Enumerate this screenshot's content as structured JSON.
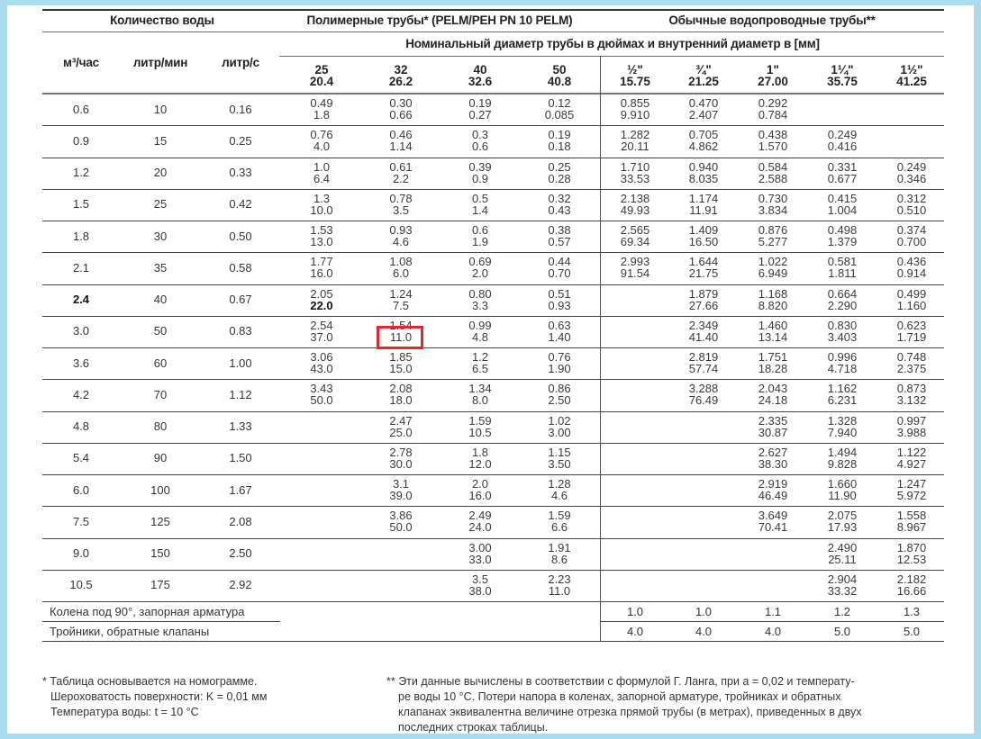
{
  "header": {
    "quantity": "Количество воды",
    "polymer": "Полимерные трубы* (PELM/PEH PN 10 PELM)",
    "steel": "Обычные водопроводные трубы**",
    "nominal": "Номинальный диаметр трубы в дюймах и внутренний диаметр в [мм]",
    "units": [
      "м³/час",
      "литр/мин",
      "литр/с"
    ],
    "diameters": [
      {
        "nom": "25",
        "inner": "20.4"
      },
      {
        "nom": "32",
        "inner": "26.2"
      },
      {
        "nom": "40",
        "inner": "32.6"
      },
      {
        "nom": "50",
        "inner": "40.8"
      },
      {
        "nom": "½\"",
        "inner": "15.75"
      },
      {
        "nom": "¾\"",
        "inner": "21.25"
      },
      {
        "nom": "1\"",
        "inner": "27.00"
      },
      {
        "nom": "1¼\"",
        "inner": "35.75"
      },
      {
        "nom": "1½\"",
        "inner": "41.25"
      }
    ]
  },
  "rows": [
    {
      "m3": "0.6",
      "lmin": "10",
      "ls": "0.16",
      "cells": [
        [
          "0.49",
          "1.8"
        ],
        [
          "0.30",
          "0.66"
        ],
        [
          "0.19",
          "0.27"
        ],
        [
          "0.12",
          "0.085"
        ],
        [
          "0.855",
          "9.910"
        ],
        [
          "0.470",
          "2.407"
        ],
        [
          "0.292",
          "0.784"
        ],
        null,
        null
      ]
    },
    {
      "m3": "0.9",
      "lmin": "15",
      "ls": "0.25",
      "cells": [
        [
          "0.76",
          "4.0"
        ],
        [
          "0.46",
          "1.14"
        ],
        [
          "0.3",
          "0.6"
        ],
        [
          "0.19",
          "0.18"
        ],
        [
          "1.282",
          "20.11"
        ],
        [
          "0.705",
          "4.862"
        ],
        [
          "0.438",
          "1.570"
        ],
        [
          "0.249",
          "0.416"
        ],
        null
      ]
    },
    {
      "m3": "1.2",
      "lmin": "20",
      "ls": "0.33",
      "cells": [
        [
          "1.0",
          "6.4"
        ],
        [
          "0.61",
          "2.2"
        ],
        [
          "0.39",
          "0.9"
        ],
        [
          "0.25",
          "0.28"
        ],
        [
          "1.710",
          "33.53"
        ],
        [
          "0.940",
          "8.035"
        ],
        [
          "0.584",
          "2.588"
        ],
        [
          "0.331",
          "0.677"
        ],
        [
          "0.249",
          "0.346"
        ]
      ]
    },
    {
      "m3": "1.5",
      "lmin": "25",
      "ls": "0.42",
      "cells": [
        [
          "1.3",
          "10.0"
        ],
        [
          "0.78",
          "3.5"
        ],
        [
          "0.5",
          "1.4"
        ],
        [
          "0.32",
          "0.43"
        ],
        [
          "2.138",
          "49.93"
        ],
        [
          "1.174",
          "11.91"
        ],
        [
          "0.730",
          "3.834"
        ],
        [
          "0.415",
          "1.004"
        ],
        [
          "0.312",
          "0.510"
        ]
      ]
    },
    {
      "m3": "1.8",
      "lmin": "30",
      "ls": "0.50",
      "cells": [
        [
          "1.53",
          "13.0"
        ],
        [
          "0.93",
          "4.6"
        ],
        [
          "0.6",
          "1.9"
        ],
        [
          "0.38",
          "0.57"
        ],
        [
          "2.565",
          "69.34"
        ],
        [
          "1.409",
          "16.50"
        ],
        [
          "0.876",
          "5.277"
        ],
        [
          "0.498",
          "1.379"
        ],
        [
          "0.374",
          "0.700"
        ]
      ]
    },
    {
      "m3": "2.1",
      "lmin": "35",
      "ls": "0.58",
      "cells": [
        [
          "1.77",
          "16.0"
        ],
        [
          "1.08",
          "6.0"
        ],
        [
          "0.69",
          "2.0"
        ],
        [
          "0.44",
          "0.70"
        ],
        [
          "2.993",
          "91.54"
        ],
        [
          "1.644",
          "21.75"
        ],
        [
          "1.022",
          "6.949"
        ],
        [
          "0.581",
          "1.811"
        ],
        [
          "0.436",
          "0.914"
        ]
      ]
    },
    {
      "m3": "2.4",
      "lmin": "40",
      "ls": "0.67",
      "emphasis": true,
      "cells": [
        [
          "2.05",
          "22.0"
        ],
        [
          "1.24",
          "7.5"
        ],
        [
          "0.80",
          "3.3"
        ],
        [
          "0.51",
          "0.93"
        ],
        null,
        [
          "1.879",
          "27.66"
        ],
        [
          "1.168",
          "8.820"
        ],
        [
          "0.664",
          "2.290"
        ],
        [
          "0.499",
          "1.160"
        ]
      ]
    },
    {
      "m3": "3.0",
      "lmin": "50",
      "ls": "0.83",
      "cells": [
        [
          "2.54",
          "37.0"
        ],
        [
          "1.54",
          "11.0"
        ],
        [
          "0.99",
          "4.8"
        ],
        [
          "0.63",
          "1.40"
        ],
        null,
        [
          "2.349",
          "41.40"
        ],
        [
          "1.460",
          "13.14"
        ],
        [
          "0.830",
          "3.403"
        ],
        [
          "0.623",
          "1.719"
        ]
      ]
    },
    {
      "m3": "3.6",
      "lmin": "60",
      "ls": "1.00",
      "cells": [
        [
          "3.06",
          "43.0"
        ],
        [
          "1.85",
          "15.0"
        ],
        [
          "1.2",
          "6.5"
        ],
        [
          "0.76",
          "1.90"
        ],
        null,
        [
          "2.819",
          "57.74"
        ],
        [
          "1.751",
          "18.28"
        ],
        [
          "0.996",
          "4.718"
        ],
        [
          "0.748",
          "2.375"
        ]
      ]
    },
    {
      "m3": "4.2",
      "lmin": "70",
      "ls": "1.12",
      "cells": [
        [
          "3.43",
          "50.0"
        ],
        [
          "2.08",
          "18.0"
        ],
        [
          "1.34",
          "8.0"
        ],
        [
          "0.86",
          "2.50"
        ],
        null,
        [
          "3.288",
          "76.49"
        ],
        [
          "2.043",
          "24.18"
        ],
        [
          "1.162",
          "6.231"
        ],
        [
          "0.873",
          "3.132"
        ]
      ]
    },
    {
      "m3": "4.8",
      "lmin": "80",
      "ls": "1.33",
      "cells": [
        null,
        [
          "2.47",
          "25.0"
        ],
        [
          "1.59",
          "10.5"
        ],
        [
          "1.02",
          "3.00"
        ],
        null,
        null,
        [
          "2.335",
          "30.87"
        ],
        [
          "1.328",
          "7.940"
        ],
        [
          "0.997",
          "3.988"
        ]
      ]
    },
    {
      "m3": "5.4",
      "lmin": "90",
      "ls": "1.50",
      "cells": [
        null,
        [
          "2.78",
          "30.0"
        ],
        [
          "1.8",
          "12.0"
        ],
        [
          "1.15",
          "3.50"
        ],
        null,
        null,
        [
          "2.627",
          "38.30"
        ],
        [
          "1.494",
          "9.828"
        ],
        [
          "1.122",
          "4.927"
        ]
      ]
    },
    {
      "m3": "6.0",
      "lmin": "100",
      "ls": "1.67",
      "cells": [
        null,
        [
          "3.1",
          "39.0"
        ],
        [
          "2.0",
          "16.0"
        ],
        [
          "1.28",
          "4.6"
        ],
        null,
        null,
        [
          "2.919",
          "46.49"
        ],
        [
          "1.660",
          "11.90"
        ],
        [
          "1.247",
          "5.972"
        ]
      ]
    },
    {
      "m3": "7.5",
      "lmin": "125",
      "ls": "2.08",
      "cells": [
        null,
        [
          "3.86",
          "50.0"
        ],
        [
          "2.49",
          "24.0"
        ],
        [
          "1.59",
          "6.6"
        ],
        null,
        null,
        [
          "3.649",
          "70.41"
        ],
        [
          "2.075",
          "17.93"
        ],
        [
          "1.558",
          "8.967"
        ]
      ]
    },
    {
      "m3": "9.0",
      "lmin": "150",
      "ls": "2.50",
      "cells": [
        null,
        null,
        [
          "3.00",
          "33.0"
        ],
        [
          "1.91",
          "8.6"
        ],
        null,
        null,
        null,
        [
          "2.490",
          "25.11"
        ],
        [
          "1.870",
          "12.53"
        ]
      ]
    },
    {
      "m3": "10.5",
      "lmin": "175",
      "ls": "2.92",
      "cells": [
        null,
        null,
        [
          "3.5",
          "38.0"
        ],
        [
          "2.23",
          "11.0"
        ],
        null,
        null,
        null,
        [
          "2.904",
          "33.32"
        ],
        [
          "2.182",
          "16.66"
        ]
      ]
    }
  ],
  "fittings": [
    {
      "label": "Колена под 90°, запорная арматура",
      "values": [
        "1.0",
        "1.0",
        "1.1",
        "1.2",
        "1.3"
      ]
    },
    {
      "label": "Тройники, обратные клапаны",
      "values": [
        "4.0",
        "4.0",
        "4.0",
        "5.0",
        "5.0"
      ]
    }
  ],
  "highlight": {
    "row": 7,
    "col": 1,
    "value": "11.0",
    "color": "#e3262b"
  },
  "footnotes": {
    "left": [
      "* Таблица основывается на номограмме.",
      "Шероховатость поверхности: K = 0,01 мм",
      "Температура воды: t = 10 °C"
    ],
    "right": [
      "** Эти данные вычислены в соответствии с формулой Г. Ланга, при a = 0,02 и температу-",
      "ре воды 10 °C. Потери напора в коленах, запорной арматуре, тройниках и обратных",
      "клапанах эквивалентна величине отрезка прямой трубы (в метрах), приведенных в двух",
      "последних строках таблицы."
    ]
  },
  "colors": {
    "frame": "#a9dcec",
    "highlight": "#e3262b"
  }
}
